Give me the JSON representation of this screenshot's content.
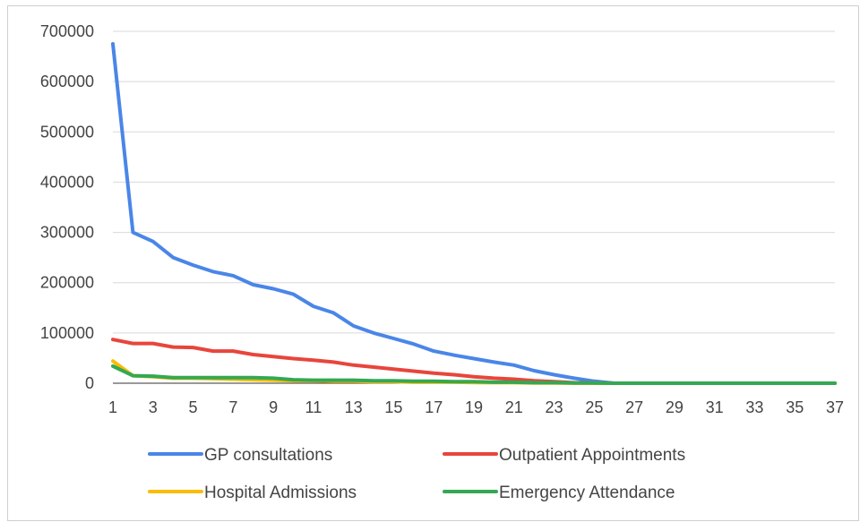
{
  "chart_data": {
    "type": "line",
    "title": "",
    "xlabel": "",
    "ylabel": "",
    "x": [
      1,
      2,
      3,
      4,
      5,
      6,
      7,
      8,
      9,
      10,
      11,
      12,
      13,
      14,
      15,
      16,
      17,
      18,
      19,
      20,
      21,
      22,
      23,
      24,
      25,
      26,
      27,
      28,
      29,
      30,
      31,
      32,
      33,
      34,
      35,
      36,
      37
    ],
    "x_tick_labels": [
      "1",
      "3",
      "5",
      "7",
      "9",
      "11",
      "13",
      "15",
      "17",
      "19",
      "21",
      "23",
      "25",
      "27",
      "29",
      "31",
      "33",
      "35",
      "37"
    ],
    "y_tick_labels": [
      "700000",
      "600000",
      "500000",
      "400000",
      "300000",
      "200000",
      "100000",
      "0"
    ],
    "ylim": [
      0,
      700000
    ],
    "grid": "horizontal",
    "legend_position": "bottom",
    "series": [
      {
        "name": "GP consultations",
        "color": "#4a86e8",
        "values": [
          675000,
          300000,
          282000,
          250000,
          235000,
          222000,
          214000,
          196000,
          188000,
          177000,
          153000,
          140000,
          114000,
          100000,
          89000,
          78000,
          64000,
          56000,
          49000,
          42000,
          36000,
          25000,
          17000,
          10000,
          4000,
          0,
          0,
          0,
          0,
          0,
          0,
          0,
          0,
          0,
          0,
          0,
          0
        ]
      },
      {
        "name": "Outpatient Appointments",
        "color": "#e8453c",
        "values": [
          87000,
          79000,
          79000,
          72000,
          71000,
          64000,
          64000,
          57000,
          53000,
          49000,
          46000,
          42000,
          36000,
          32000,
          28000,
          24000,
          20000,
          17000,
          13000,
          10000,
          8000,
          5000,
          3000,
          1000,
          500,
          0,
          0,
          0,
          0,
          0,
          0,
          0,
          0,
          0,
          0,
          0,
          0
        ]
      },
      {
        "name": "Hospital Admissions",
        "color": "#fbbc04",
        "values": [
          44000,
          15000,
          13000,
          10000,
          10000,
          9000,
          8000,
          7000,
          6000,
          5000,
          5000,
          4000,
          4000,
          3000,
          3000,
          2000,
          2000,
          2000,
          1500,
          1000,
          1000,
          500,
          500,
          0,
          0,
          0,
          0,
          0,
          0,
          0,
          0,
          0,
          0,
          0,
          0,
          0,
          0
        ]
      },
      {
        "name": "Emergency Attendance",
        "color": "#34a853",
        "values": [
          34000,
          15000,
          14000,
          11000,
          11000,
          11000,
          11000,
          11000,
          10000,
          7000,
          6000,
          6000,
          6000,
          5000,
          5000,
          4000,
          4000,
          3000,
          3000,
          2000,
          2000,
          1000,
          1000,
          500,
          500,
          0,
          0,
          0,
          0,
          0,
          0,
          0,
          0,
          0,
          0,
          0,
          0
        ]
      }
    ]
  }
}
